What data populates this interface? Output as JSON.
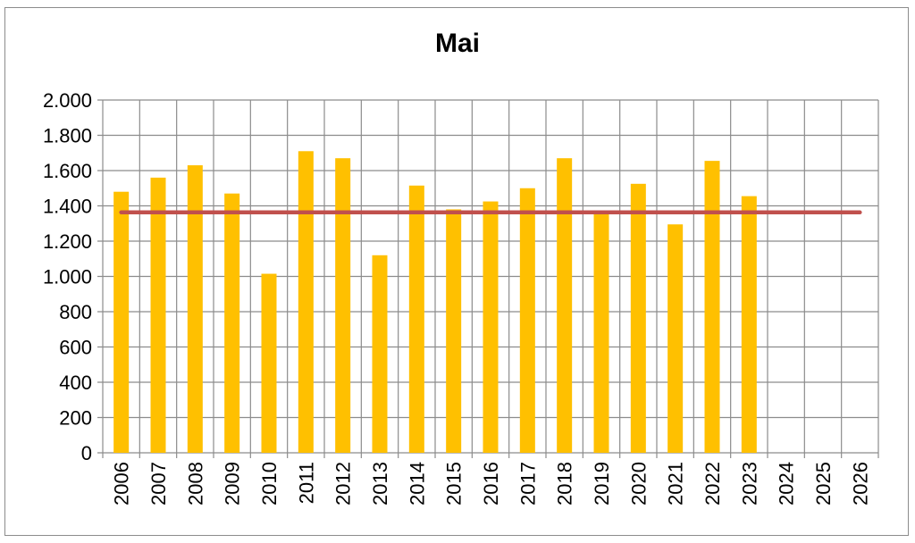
{
  "chart_data": {
    "type": "bar",
    "title": "Mai",
    "xlabel": "",
    "ylabel": "",
    "categories": [
      "2006",
      "2007",
      "2008",
      "2009",
      "2010",
      "2011",
      "2012",
      "2013",
      "2014",
      "2015",
      "2016",
      "2017",
      "2018",
      "2019",
      "2020",
      "2021",
      "2022",
      "2023",
      "2024",
      "2025",
      "2026"
    ],
    "series": [
      {
        "values": [
          1480,
          1560,
          1630,
          1470,
          1015,
          1710,
          1670,
          1120,
          1515,
          1380,
          1425,
          1500,
          1670,
          1360,
          1525,
          1295,
          1655,
          1455,
          null,
          null,
          null
        ]
      },
      {
        "values": [
          1363,
          1363,
          1363,
          1363,
          1363,
          1363,
          1363,
          1363,
          1363,
          1363,
          1363,
          1363,
          1363,
          1363,
          1363,
          1363,
          1363,
          1363,
          1363,
          1363,
          1363
        ]
      }
    ],
    "ylim": [
      0,
      2000
    ],
    "yticks": [
      0,
      200,
      400,
      600,
      800,
      1000,
      1200,
      1400,
      1600,
      1800,
      2000
    ],
    "ytick_labels": [
      "0",
      "200",
      "400",
      "600",
      "800",
      "1.000",
      "1.200",
      "1.400",
      "1.600",
      "1.800",
      "2.000"
    ],
    "grid": true,
    "legend": "none",
    "colors": {
      "bar": "#FFC000",
      "line": "#C0504D",
      "grid": "#8c8c8c"
    }
  }
}
